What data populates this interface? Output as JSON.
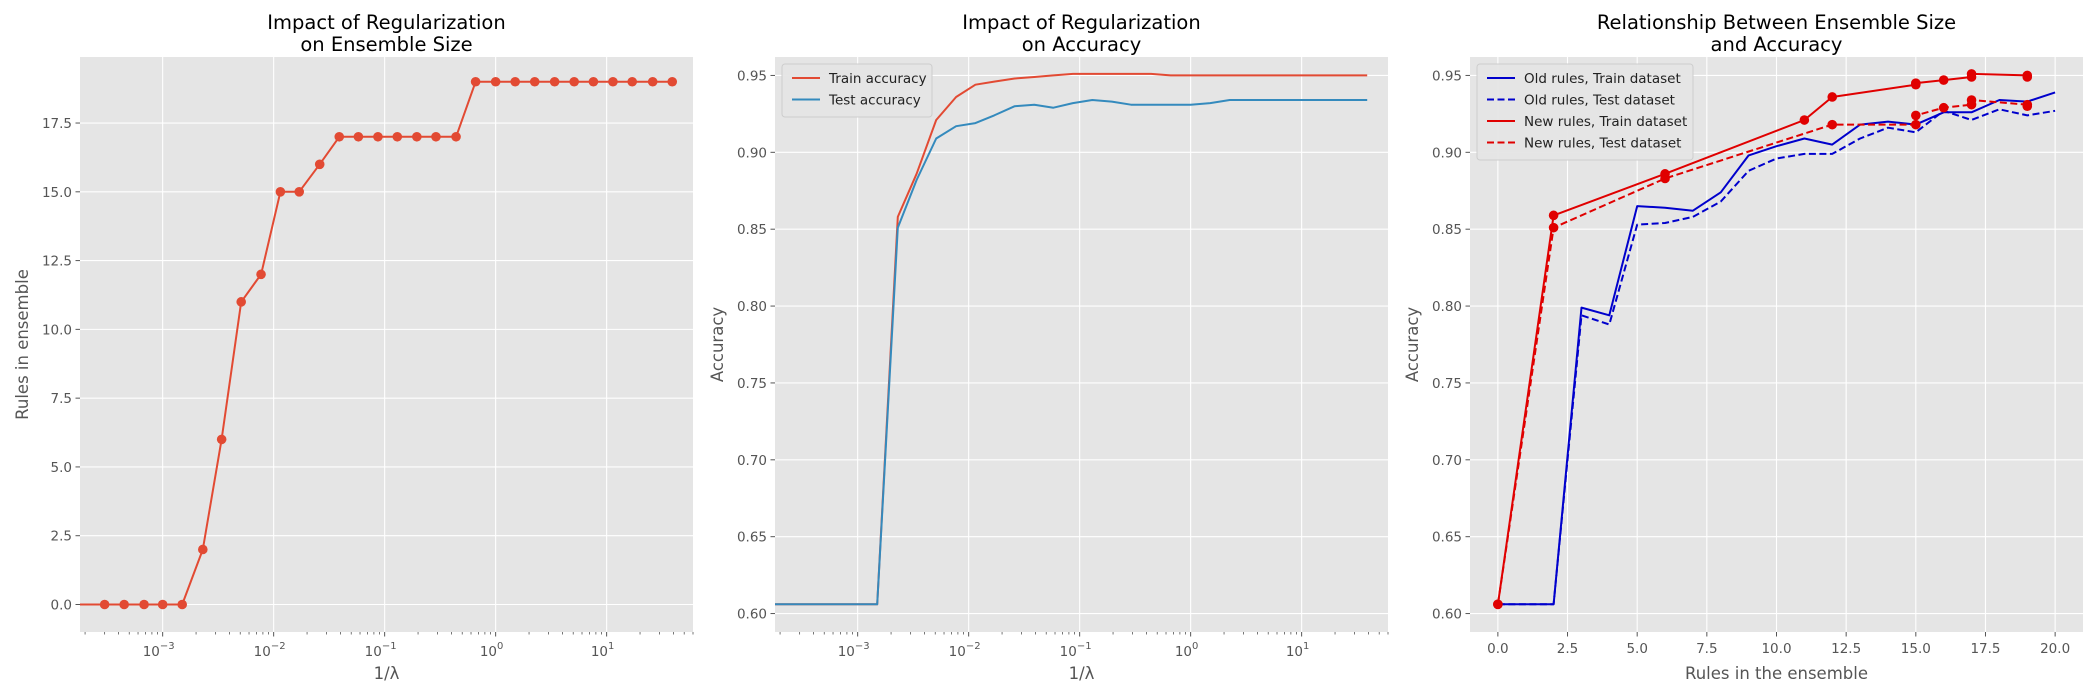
{
  "chart_data": [
    {
      "type": "line",
      "title_lines": [
        "Impact of Regularization",
        "on Ensemble Size"
      ],
      "xlabel": "1/λ",
      "ylabel": "Rules in ensemble",
      "xscale": "log",
      "xlim": [
        0.00018,
        60
      ],
      "ylim": [
        -1,
        19.9
      ],
      "xticks": [
        {
          "base": "10",
          "exp": "−3",
          "value": 0.001
        },
        {
          "base": "10",
          "exp": "−2",
          "value": 0.01
        },
        {
          "base": "10",
          "exp": "−1",
          "value": 0.1
        },
        {
          "base": "10",
          "exp": "0",
          "value": 1
        },
        {
          "base": "10",
          "exp": "1",
          "value": 10
        }
      ],
      "yticks": [
        "0.0",
        "2.5",
        "5.0",
        "7.5",
        "10.0",
        "12.5",
        "15.0",
        "17.5"
      ],
      "grid": true,
      "legend": "none",
      "series": [
        {
          "color": "#E24A33",
          "marker": "circle",
          "x": [
            0.00018,
            0.0003,
            0.00045,
            0.00068,
            0.001,
            0.0015,
            0.0023,
            0.0034,
            0.0051,
            0.0077,
            0.0115,
            0.017,
            0.026,
            0.039,
            0.058,
            0.087,
            0.13,
            0.195,
            0.29,
            0.44,
            0.66,
            1.0,
            1.5,
            2.25,
            3.4,
            5.1,
            7.6,
            11.4,
            17,
            26,
            39
          ],
          "y": [
            0,
            0,
            0,
            0,
            0,
            0,
            2,
            6,
            11,
            12,
            15,
            15,
            16,
            17,
            17,
            17,
            17,
            17,
            17,
            17,
            19,
            19,
            19,
            19,
            19,
            19,
            19,
            19,
            19,
            19,
            19
          ],
          "first_point_marker": false
        }
      ]
    },
    {
      "type": "line",
      "title_lines": [
        "Impact of Regularization",
        "on Accuracy"
      ],
      "xlabel": "1/λ",
      "ylabel": "Accuracy",
      "xscale": "log",
      "xlim": [
        0.00018,
        60
      ],
      "ylim": [
        0.588,
        0.962
      ],
      "xticks": [
        {
          "base": "10",
          "exp": "−3",
          "value": 0.001
        },
        {
          "base": "10",
          "exp": "−2",
          "value": 0.01
        },
        {
          "base": "10",
          "exp": "−1",
          "value": 0.1
        },
        {
          "base": "10",
          "exp": "0",
          "value": 1
        },
        {
          "base": "10",
          "exp": "1",
          "value": 10
        }
      ],
      "yticks": [
        "0.60",
        "0.65",
        "0.70",
        "0.75",
        "0.80",
        "0.85",
        "0.90",
        "0.95"
      ],
      "grid": true,
      "legend": "top-left",
      "series": [
        {
          "name": "Train accuracy",
          "color": "#E24A33",
          "x": [
            0.00018,
            0.0003,
            0.00045,
            0.00068,
            0.001,
            0.0015,
            0.0023,
            0.0034,
            0.0051,
            0.0077,
            0.0115,
            0.017,
            0.026,
            0.039,
            0.058,
            0.087,
            0.13,
            0.195,
            0.29,
            0.44,
            0.66,
            1.0,
            1.5,
            2.25,
            3.4,
            5.1,
            7.6,
            11.4,
            17,
            26,
            39
          ],
          "y": [
            0.606,
            0.606,
            0.606,
            0.606,
            0.606,
            0.606,
            0.858,
            0.886,
            0.921,
            0.936,
            0.944,
            0.946,
            0.948,
            0.949,
            0.95,
            0.951,
            0.951,
            0.951,
            0.951,
            0.951,
            0.95,
            0.95,
            0.95,
            0.95,
            0.95,
            0.95,
            0.95,
            0.95,
            0.95,
            0.95,
            0.95
          ]
        },
        {
          "name": "Test accuracy",
          "color": "#348ABD",
          "x": [
            0.00018,
            0.0003,
            0.00045,
            0.00068,
            0.001,
            0.0015,
            0.0023,
            0.0034,
            0.0051,
            0.0077,
            0.0115,
            0.017,
            0.026,
            0.039,
            0.058,
            0.087,
            0.13,
            0.195,
            0.29,
            0.44,
            0.66,
            1.0,
            1.5,
            2.25,
            3.4,
            5.1,
            7.6,
            11.4,
            17,
            26,
            39
          ],
          "y": [
            0.606,
            0.606,
            0.606,
            0.606,
            0.606,
            0.606,
            0.851,
            0.882,
            0.909,
            0.917,
            0.919,
            0.924,
            0.93,
            0.931,
            0.929,
            0.932,
            0.934,
            0.933,
            0.931,
            0.931,
            0.931,
            0.931,
            0.932,
            0.934,
            0.934,
            0.934,
            0.934,
            0.934,
            0.934,
            0.934,
            0.934
          ]
        }
      ]
    },
    {
      "type": "line",
      "title_lines": [
        "Relationship Between Ensemble Size",
        "and Accuracy"
      ],
      "xlabel": "Rules in the ensemble",
      "ylabel": "Accuracy",
      "xscale": "linear",
      "xlim": [
        -1,
        21
      ],
      "ylim": [
        0.588,
        0.962
      ],
      "xticks": [
        "0.0",
        "2.5",
        "5.0",
        "7.5",
        "10.0",
        "12.5",
        "15.0",
        "17.5",
        "20.0"
      ],
      "yticks": [
        "0.60",
        "0.65",
        "0.70",
        "0.75",
        "0.80",
        "0.85",
        "0.90",
        "0.95"
      ],
      "grid": true,
      "legend": "top-left",
      "series": [
        {
          "name": "Old rules, Train dataset",
          "color": "#0000CC",
          "dash": "solid",
          "x": [
            0,
            1,
            2,
            3,
            4,
            5,
            6,
            7,
            8,
            9,
            10,
            11,
            12,
            13,
            14,
            15,
            16,
            17,
            18,
            19,
            20
          ],
          "y": [
            0.606,
            0.606,
            0.606,
            0.799,
            0.794,
            0.865,
            0.864,
            0.862,
            0.874,
            0.898,
            0.904,
            0.909,
            0.905,
            0.918,
            0.92,
            0.918,
            0.926,
            0.926,
            0.934,
            0.933,
            0.939
          ]
        },
        {
          "name": "Old rules, Test dataset",
          "color": "#0000CC",
          "dash": "dashed",
          "x": [
            0,
            1,
            2,
            3,
            4,
            5,
            6,
            7,
            8,
            9,
            10,
            11,
            12,
            13,
            14,
            15,
            16,
            17,
            18,
            19,
            20
          ],
          "y": [
            0.606,
            0.606,
            0.606,
            0.794,
            0.788,
            0.853,
            0.854,
            0.858,
            0.868,
            0.888,
            0.896,
            0.899,
            0.899,
            0.909,
            0.916,
            0.913,
            0.927,
            0.921,
            0.928,
            0.924,
            0.927
          ]
        },
        {
          "name": "New rules, Train dataset",
          "color": "#E00000",
          "dash": "solid",
          "marker": "circle",
          "x": [
            0,
            2,
            6,
            11,
            12,
            15,
            15,
            16,
            17,
            17,
            19,
            19
          ],
          "y": [
            0.606,
            0.859,
            0.886,
            0.921,
            0.936,
            0.944,
            0.945,
            0.947,
            0.949,
            0.951,
            0.95,
            0.949
          ]
        },
        {
          "name": "New rules, Test dataset",
          "color": "#E00000",
          "dash": "dashed",
          "marker": "circle",
          "x": [
            0,
            2,
            6,
            12,
            15,
            15,
            16,
            17,
            17,
            19,
            19
          ],
          "y": [
            0.606,
            0.851,
            0.883,
            0.918,
            0.918,
            0.924,
            0.929,
            0.931,
            0.934,
            0.931,
            0.93
          ]
        }
      ]
    }
  ]
}
